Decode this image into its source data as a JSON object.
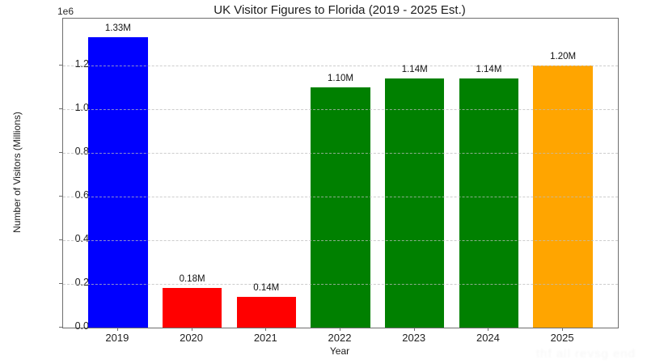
{
  "chart_data": {
    "type": "bar",
    "title": "UK Visitor Figures to Florida (2019 - 2025 Est.)",
    "xlabel": "Year",
    "ylabel": "Number of Visitors (Millions)",
    "offset_text": "1e6",
    "categories": [
      "2019",
      "2020",
      "2021",
      "2022",
      "2023",
      "2024",
      "2025"
    ],
    "values": [
      1330000,
      180000,
      140000,
      1100000,
      1140000,
      1140000,
      1200000
    ],
    "bar_labels": [
      "1.33M",
      "0.18M",
      "0.14M",
      "1.10M",
      "1.14M",
      "1.14M",
      "1.20M"
    ],
    "bar_colors": [
      "#0000ff",
      "#ff0000",
      "#ff0000",
      "#008000",
      "#008000",
      "#008000",
      "#ffa500"
    ],
    "ylim": [
      0,
      1415000
    ],
    "yticks": [
      0,
      200000,
      400000,
      600000,
      800000,
      1000000,
      1200000
    ],
    "ytick_labels": [
      "0.0",
      "0.2",
      "0.4",
      "0.6",
      "0.8",
      "1.0",
      "1.2"
    ],
    "grid": "horizontal-dashed",
    "legend": "none"
  },
  "watermark_text": "thf all revsg end"
}
